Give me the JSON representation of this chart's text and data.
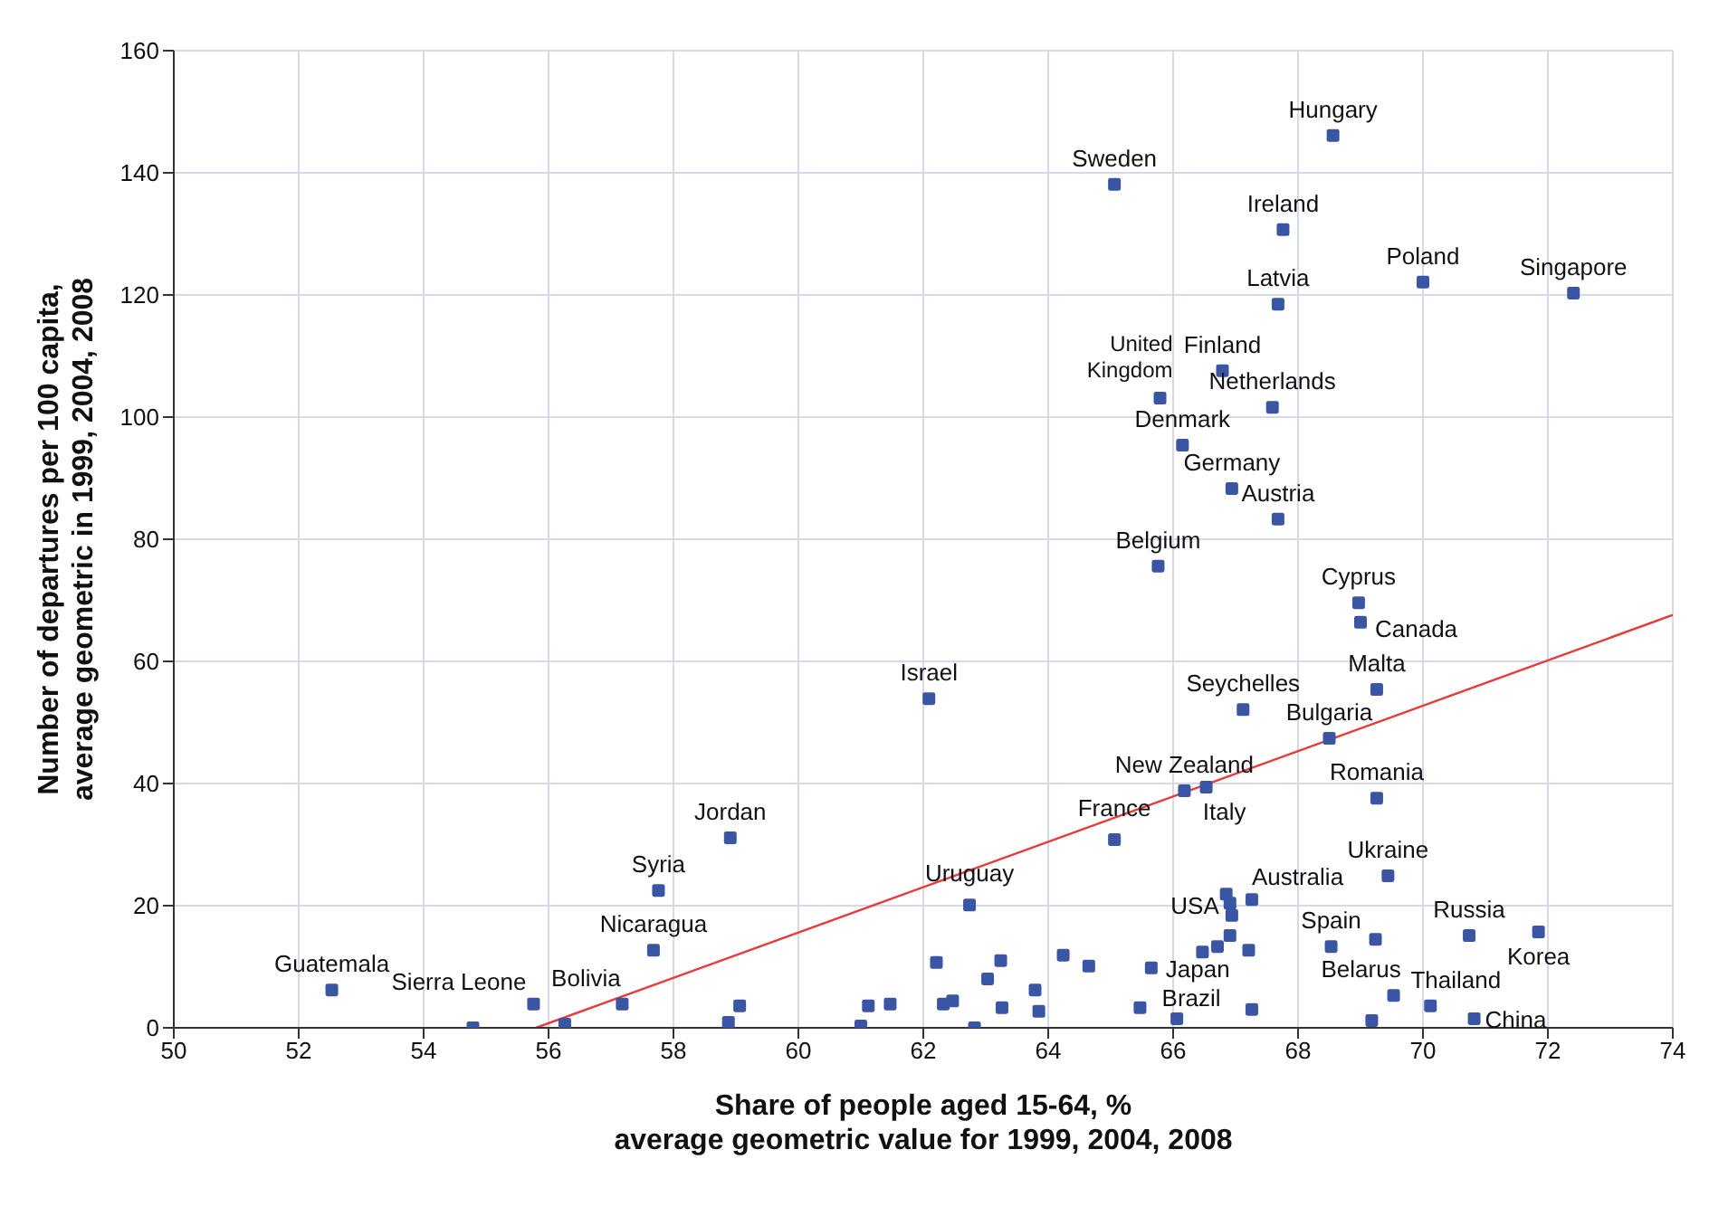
{
  "chart_data": {
    "type": "scatter",
    "xlabel": "Share of people aged 15-64, %\naverage geometric value for 1999, 2004, 2008",
    "ylabel": "Number of departures per 100 capita,\naverage geometric in 1999, 2004, 2008",
    "xlim": [
      50,
      74
    ],
    "xticks": [
      50,
      52,
      54,
      56,
      58,
      60,
      62,
      64,
      66,
      68,
      70,
      72,
      74
    ],
    "ylim": [
      0,
      160
    ],
    "yticks": [
      0,
      20,
      40,
      60,
      80,
      100,
      120,
      140,
      160
    ],
    "grid": true,
    "series": [
      {
        "color": "#3a55a4",
        "marker": "square",
        "x": [
          52.53,
          55.76,
          58.91,
          57.76,
          57.68,
          57.18,
          62.09,
          62.74,
          65.06,
          66.18,
          66.53,
          67.12,
          68.5,
          69.26,
          69.26,
          69.44,
          67.26,
          66.85,
          66.91,
          66.94,
          68.53,
          69.53,
          70.12,
          70.82,
          70.74,
          71.85,
          65.65,
          66.06,
          68.56,
          65.06,
          67.76,
          70.0,
          72.41,
          67.68,
          66.79,
          65.79,
          67.59,
          66.15,
          66.94,
          67.68,
          65.76,
          68.97,
          69.0,
          54.79,
          56.26,
          58.88,
          59.06,
          61.0,
          61.12,
          61.47,
          62.21,
          62.32,
          62.47,
          62.82,
          63.03,
          63.24,
          63.26,
          63.79,
          63.85,
          64.24,
          64.65,
          65.47,
          66.47,
          66.71,
          66.91,
          67.21,
          67.26,
          69.24,
          69.18
        ],
        "values": [
          6.2,
          3.9,
          31.1,
          22.5,
          12.7,
          3.9,
          53.9,
          20.1,
          30.8,
          38.8,
          39.4,
          52.1,
          47.4,
          55.4,
          37.6,
          24.9,
          21.0,
          21.9,
          20.4,
          18.4,
          13.3,
          5.3,
          3.6,
          1.5,
          15.1,
          15.7,
          9.8,
          1.5,
          146.1,
          138.1,
          130.7,
          122.1,
          120.3,
          118.5,
          107.6,
          103.1,
          101.6,
          95.4,
          88.3,
          83.3,
          75.6,
          69.6,
          66.4,
          0.0,
          0.6,
          0.9,
          3.6,
          0.3,
          3.6,
          3.9,
          10.7,
          3.9,
          4.4,
          0.0,
          8.0,
          11.0,
          3.3,
          6.2,
          2.7,
          11.9,
          10.1,
          3.3,
          12.4,
          13.3,
          15.1,
          12.7,
          3.0,
          14.5,
          1.2
        ]
      },
      {
        "type": "line",
        "color": "#e8393b",
        "x": [
          55.8,
          74
        ],
        "values": [
          0,
          67.6
        ]
      }
    ],
    "annotations": [
      {
        "text": "Guatemala",
        "x": 52.53,
        "y": 6.2
      },
      {
        "text": "Sierra Leone",
        "x": 55.76,
        "y": 3.9
      },
      {
        "text": "Jordan",
        "x": 58.91,
        "y": 31.1
      },
      {
        "text": "Syria",
        "x": 57.76,
        "y": 22.5
      },
      {
        "text": "Nicaragua",
        "x": 57.68,
        "y": 12.7
      },
      {
        "text": "Bolivia",
        "x": 57.18,
        "y": 3.9
      },
      {
        "text": "Israel",
        "x": 62.09,
        "y": 53.9
      },
      {
        "text": "Uruguay",
        "x": 62.74,
        "y": 20.1
      },
      {
        "text": "France",
        "x": 65.06,
        "y": 30.8
      },
      {
        "text": "New Zealand",
        "x": 66.18,
        "y": 38.8
      },
      {
        "text": "Italy",
        "x": 66.53,
        "y": 39.4
      },
      {
        "text": "Seychelles",
        "x": 67.12,
        "y": 52.1
      },
      {
        "text": "Bulgaria",
        "x": 68.5,
        "y": 47.4
      },
      {
        "text": "Malta",
        "x": 69.26,
        "y": 55.4
      },
      {
        "text": "Romania",
        "x": 69.26,
        "y": 37.6
      },
      {
        "text": "Ukraine",
        "x": 69.44,
        "y": 24.9
      },
      {
        "text": "Australia",
        "x": 67.26,
        "y": 21.0
      },
      {
        "text": "USA",
        "x": 66.91,
        "y": 20.4
      },
      {
        "text": "Spain",
        "x": 68.53,
        "y": 13.3
      },
      {
        "text": "Belarus",
        "x": 69.53,
        "y": 5.3
      },
      {
        "text": "Thailand",
        "x": 70.12,
        "y": 3.6
      },
      {
        "text": "China",
        "x": 70.82,
        "y": 1.5
      },
      {
        "text": "Russia",
        "x": 70.74,
        "y": 15.1
      },
      {
        "text": "Korea",
        "x": 71.85,
        "y": 15.7
      },
      {
        "text": "Japan",
        "x": 65.65,
        "y": 9.8
      },
      {
        "text": "Brazil",
        "x": 66.06,
        "y": 1.5
      },
      {
        "text": "Hungary",
        "x": 68.56,
        "y": 146.1
      },
      {
        "text": "Sweden",
        "x": 65.06,
        "y": 138.1
      },
      {
        "text": "Ireland",
        "x": 67.76,
        "y": 130.7
      },
      {
        "text": "Poland",
        "x": 70.0,
        "y": 122.1
      },
      {
        "text": "Singapore",
        "x": 72.41,
        "y": 120.3
      },
      {
        "text": "Latvia",
        "x": 67.68,
        "y": 118.5
      },
      {
        "text": "Finland",
        "x": 66.79,
        "y": 107.6
      },
      {
        "text": "United\nKingdom",
        "x": 65.79,
        "y": 103.1
      },
      {
        "text": "Netherlands",
        "x": 67.59,
        "y": 101.6
      },
      {
        "text": "Denmark",
        "x": 66.15,
        "y": 95.4
      },
      {
        "text": "Germany",
        "x": 66.94,
        "y": 88.3
      },
      {
        "text": "Austria",
        "x": 67.68,
        "y": 83.3
      },
      {
        "text": "Belgium",
        "x": 65.76,
        "y": 75.6
      },
      {
        "text": "Cyprus",
        "x": 68.97,
        "y": 69.6
      },
      {
        "text": "Canada",
        "x": 69.0,
        "y": 66.4
      }
    ]
  }
}
